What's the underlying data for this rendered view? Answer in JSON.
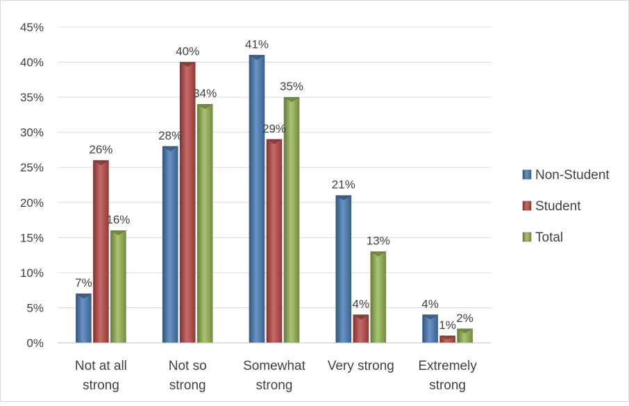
{
  "chart_data": {
    "type": "bar",
    "title": "",
    "xlabel": "",
    "ylabel": "",
    "categories": [
      [
        "Not at all",
        "strong"
      ],
      [
        "Not so",
        "strong"
      ],
      [
        "Somewhat",
        "strong"
      ],
      [
        "Very strong"
      ],
      [
        "Extremely",
        "strong"
      ]
    ],
    "series": [
      {
        "name": "Non-Student",
        "color": "#4f81bd",
        "values": [
          7,
          28,
          41,
          21,
          4
        ],
        "labels": [
          "7%",
          "28%",
          "41%",
          "21%",
          "4%"
        ]
      },
      {
        "name": "Student",
        "color": "#c0504d",
        "values": [
          26,
          40,
          29,
          4,
          1
        ],
        "labels": [
          "26%",
          "40%",
          "29%",
          "4%",
          "1%"
        ]
      },
      {
        "name": "Total",
        "color": "#9bbb59",
        "values": [
          16,
          34,
          35,
          13,
          2
        ],
        "labels": [
          "16%",
          "34%",
          "35%",
          "13%",
          "2%"
        ]
      }
    ],
    "ylim": [
      0,
      45
    ],
    "yticks": [
      "0%",
      "5%",
      "10%",
      "15%",
      "20%",
      "25%",
      "30%",
      "35%",
      "40%",
      "45%"
    ],
    "grid": true,
    "legend_position": "right"
  }
}
